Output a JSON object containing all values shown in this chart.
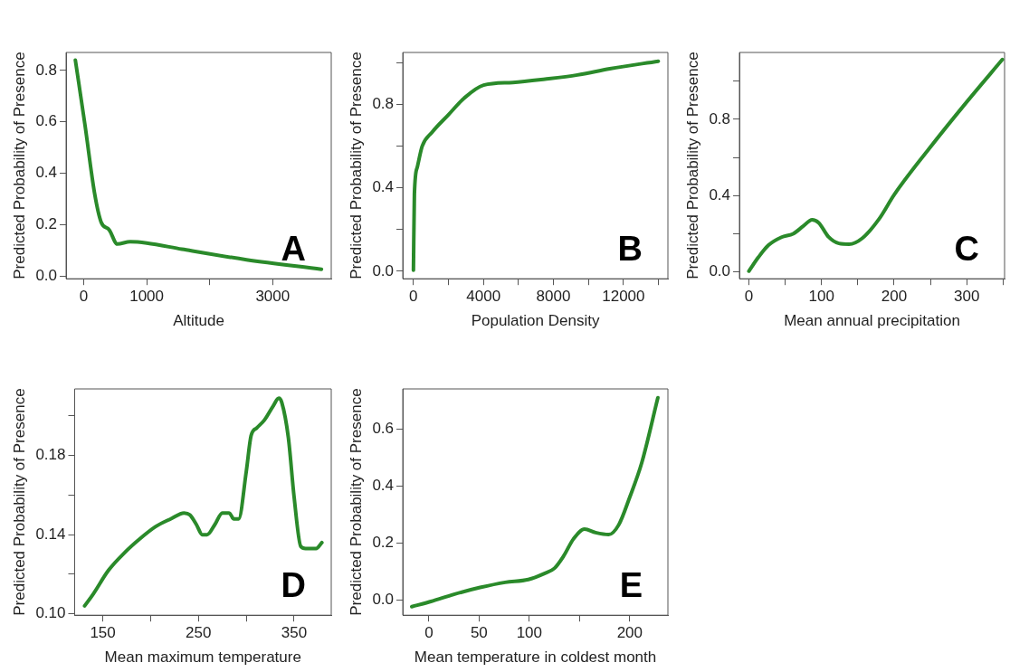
{
  "chart_data": [
    {
      "type": "line",
      "xlabel": "Altitude",
      "ylabel": "Predicted Probability of Presence",
      "color": "#2a8a2a",
      "annotations": [
        "A"
      ],
      "x": [
        -133,
        20,
        174,
        277,
        405,
        533,
        738,
        1000,
        1559,
        2585,
        3774
      ],
      "values": [
        0.84,
        0.588,
        0.32,
        0.21,
        0.18,
        0.125,
        0.134,
        0.129,
        0.105,
        0.064,
        0.027
      ],
      "xlim": [
        -280,
        3930
      ],
      "ylim": [
        -0.01,
        0.87
      ],
      "xticks": [
        0,
        1000,
        {
          "value": 2000,
          "label": null
        },
        3000
      ],
      "yticks": [
        {
          "value": 0,
          "label": "0.0"
        },
        0.2,
        0.4,
        0.6,
        0.8
      ]
    },
    {
      "type": "line",
      "xlabel": "Population Density",
      "ylabel": "Predicted Probability of Presence",
      "color": "#2a8a2a",
      "annotations": [
        "B"
      ],
      "x": [
        0,
        55,
        222,
        500,
        1053,
        1977,
        2900,
        4010,
        5673,
        7520,
        9370,
        11218,
        13990
      ],
      "values": [
        0.005,
        0.37,
        0.5,
        0.6,
        0.666,
        0.749,
        0.831,
        0.893,
        0.906,
        0.922,
        0.942,
        0.972,
        1.008
      ],
      "xlim": [
        -610,
        14540
      ],
      "ylim": [
        -0.036,
        1.05
      ],
      "xticks": [
        0,
        {
          "value": 2000,
          "label": null
        },
        4000,
        {
          "value": 6000,
          "label": null
        },
        8000,
        {
          "value": 10000,
          "label": null
        },
        12000,
        {
          "value": 14000,
          "label": null
        }
      ],
      "yticks": [
        {
          "value": 0,
          "label": "0.0"
        },
        {
          "value": 0.2,
          "label": null
        },
        0.4,
        {
          "value": 0.6,
          "label": null
        },
        0.8,
        {
          "value": 1,
          "label": null
        }
      ]
    },
    {
      "type": "line",
      "xlabel": "Mean annual precipitation",
      "ylabel": "Predicted Probability of Presence",
      "color": "#2a8a2a",
      "annotations": [
        "C"
      ],
      "x": [
        0,
        13,
        27,
        45,
        61,
        75,
        87,
        96,
        110,
        124,
        138,
        156,
        179,
        200,
        248,
        300,
        349
      ],
      "values": [
        0.004,
        0.076,
        0.14,
        0.182,
        0.2,
        0.24,
        0.273,
        0.258,
        0.182,
        0.149,
        0.145,
        0.176,
        0.276,
        0.404,
        0.645,
        0.891,
        1.113
      ],
      "xlim": [
        -13,
        352
      ],
      "ylim": [
        -0.036,
        1.15
      ],
      "xticks": [
        0,
        {
          "value": 50,
          "label": null
        },
        100,
        {
          "value": 150,
          "label": null
        },
        200,
        {
          "value": 250,
          "label": null
        },
        300,
        {
          "value": 350,
          "label": null
        }
      ],
      "yticks": [
        {
          "value": 0,
          "label": "0.0"
        },
        {
          "value": 0.2,
          "label": null
        },
        0.4,
        {
          "value": 0.6,
          "label": null
        },
        0.8,
        {
          "value": 1,
          "label": null
        }
      ]
    },
    {
      "type": "line",
      "xlabel": "Mean maximum temperature",
      "ylabel": "Predicted Probability of Presence",
      "color": "#2a8a2a",
      "annotations": [
        "D"
      ],
      "x": [
        131,
        140,
        156,
        173,
        189,
        205,
        221,
        235,
        241,
        248,
        254,
        259,
        267,
        275,
        282,
        287,
        292,
        300,
        305,
        311,
        319,
        328,
        334,
        337,
        344,
        350,
        357,
        362,
        368,
        373,
        379
      ],
      "values": [
        0.104,
        0.11,
        0.122,
        0.131,
        0.138,
        0.144,
        0.148,
        0.151,
        0.15,
        0.145,
        0.14,
        0.14,
        0.145,
        0.151,
        0.151,
        0.148,
        0.148,
        0.172,
        0.19,
        0.194,
        0.198,
        0.205,
        0.209,
        0.207,
        0.189,
        0.159,
        0.134,
        0.133,
        0.133,
        0.133,
        0.136
      ],
      "xlim": [
        120.6,
        388.8
      ],
      "ylim": [
        0.0993,
        0.2137
      ],
      "xticks": [
        150,
        {
          "value": 200,
          "label": null
        },
        250,
        {
          "value": 300,
          "label": null
        },
        350
      ],
      "yticks": [
        {
          "value": 0.1,
          "label": "0.10"
        },
        {
          "value": 0.12,
          "label": null
        },
        0.14,
        {
          "value": 0.16,
          "label": null
        },
        0.18,
        {
          "value": 0.2,
          "label": null
        }
      ]
    },
    {
      "type": "line",
      "xlabel": "Mean temperature in coldest month",
      "ylabel": "Predicted Probability of Presence",
      "color": "#2a8a2a",
      "annotations": [
        "E"
      ],
      "x": [
        -17,
        2,
        25,
        51,
        76,
        99,
        115,
        125,
        134,
        144,
        155,
        166,
        179,
        189,
        200,
        212,
        228
      ],
      "values": [
        -0.022,
        -0.004,
        0.021,
        0.045,
        0.063,
        0.073,
        0.094,
        0.112,
        0.154,
        0.215,
        0.249,
        0.237,
        0.23,
        0.264,
        0.361,
        0.482,
        0.709
      ],
      "xlim": [
        -26,
        238
      ],
      "ylim": [
        -0.052,
        0.74
      ],
      "xticks": [
        0,
        50,
        100,
        {
          "value": 150,
          "label": null
        },
        200
      ],
      "yticks": [
        {
          "value": 0,
          "label": "0.0"
        },
        0.2,
        0.4,
        0.6
      ]
    }
  ]
}
